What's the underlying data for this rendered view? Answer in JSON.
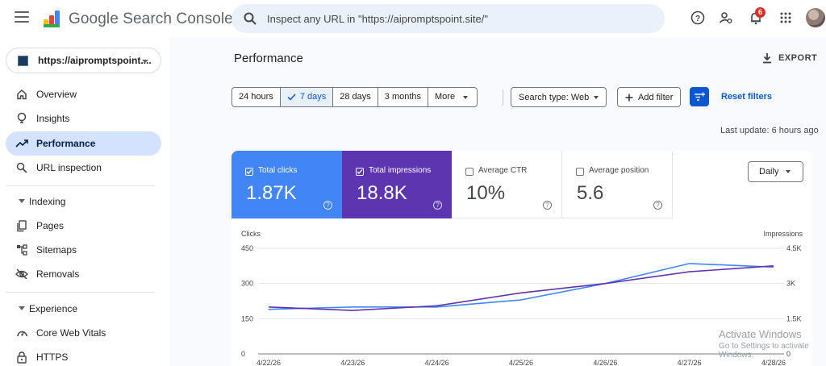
{
  "app": {
    "title": "Google Search Console",
    "search_placeholder": "Inspect any URL in \"https://aipromptspoint.site/\"",
    "notification_count": "6"
  },
  "sidebar": {
    "property": "https://aipromptspoint....",
    "items": [
      {
        "label": "Overview",
        "icon": "home-icon"
      },
      {
        "label": "Insights",
        "icon": "lightbulb-icon"
      },
      {
        "label": "Performance",
        "icon": "trending-icon",
        "active": true
      },
      {
        "label": "URL inspection",
        "icon": "search-icon"
      }
    ],
    "indexing": {
      "label": "Indexing",
      "items": [
        {
          "label": "Pages",
          "icon": "pages-icon"
        },
        {
          "label": "Sitemaps",
          "icon": "sitemap-icon"
        },
        {
          "label": "Removals",
          "icon": "eye-off-icon"
        }
      ]
    },
    "experience": {
      "label": "Experience",
      "items": [
        {
          "label": "Core Web Vitals",
          "icon": "gauge-icon"
        },
        {
          "label": "HTTPS",
          "icon": "lock-icon"
        }
      ]
    }
  },
  "main": {
    "title": "Performance",
    "export_label": "EXPORT",
    "date_ranges": [
      "24 hours",
      "7 days",
      "28 days",
      "3 months",
      "More"
    ],
    "active_range": "7 days",
    "search_type": "Search type: Web",
    "add_filter": "Add filter",
    "reset_filters": "Reset filters",
    "last_update": "Last update: 6 hours ago"
  },
  "metrics": {
    "clicks": {
      "label": "Total clicks",
      "value": "1.87K",
      "selected": true,
      "color": "#4285f4"
    },
    "impressions": {
      "label": "Total impressions",
      "value": "18.8K",
      "selected": true,
      "color": "#5e35b1"
    },
    "ctr": {
      "label": "Average CTR",
      "value": "10%",
      "selected": false
    },
    "position": {
      "label": "Average position",
      "value": "5.6",
      "selected": false
    }
  },
  "granularity": "Daily",
  "chart_data": {
    "type": "line",
    "y_left_label": "Clicks",
    "y_right_label": "Impressions",
    "y_left_ticks": [
      "450",
      "300",
      "150",
      "0"
    ],
    "y_right_ticks": [
      "4.5K",
      "3K",
      "1.5K",
      "0"
    ],
    "ylim_left": [
      0,
      450
    ],
    "ylim_right": [
      0,
      4500
    ],
    "x": [
      "4/22/26",
      "4/23/26",
      "4/24/26",
      "4/25/26",
      "4/26/26",
      "4/27/26",
      "4/28/26"
    ],
    "series": [
      {
        "name": "Clicks",
        "axis": "left",
        "color": "#4285f4",
        "values": [
          190,
          200,
          200,
          230,
          300,
          385,
          370
        ]
      },
      {
        "name": "Impressions",
        "axis": "right",
        "color": "#5e35b1",
        "values": [
          2000,
          1850,
          2050,
          2600,
          3000,
          3500,
          3750
        ]
      }
    ],
    "grid": true
  },
  "watermark": {
    "line1": "Activate Windows",
    "line2": "Go to Settings to activate Windows."
  }
}
